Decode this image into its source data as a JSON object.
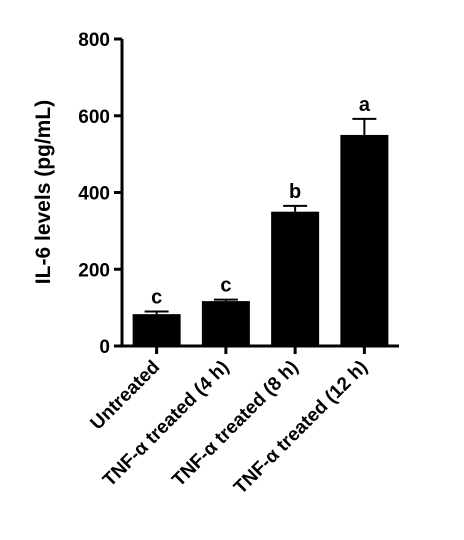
{
  "chart_data": {
    "type": "bar",
    "title": "",
    "xlabel": "",
    "ylabel": "IL-6 levels (pg/mL)",
    "ylim": [
      0,
      800
    ],
    "yticks": [
      0,
      200,
      400,
      600,
      800
    ],
    "grid": false,
    "categories": [
      "Untreated",
      "TNF-α treated (4 h)",
      "TNF-α treated (8 h)",
      "TNF-α treated (12 h)"
    ],
    "values": [
      83,
      117,
      350,
      550
    ],
    "errors": [
      7,
      4,
      15,
      42
    ],
    "significance": [
      "c",
      "c",
      "b",
      "a"
    ],
    "colors": {
      "bar": "#000000",
      "axis": "#000000"
    }
  }
}
